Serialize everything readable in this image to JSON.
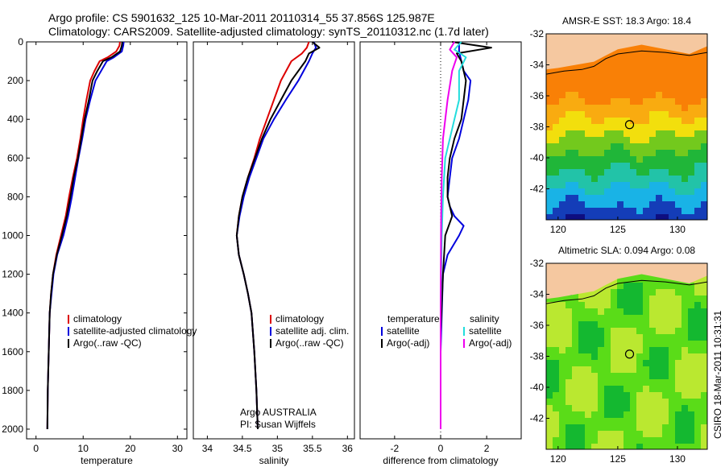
{
  "header": {
    "line1": "Argo profile: CS 5901632_125 10-Mar-2011 20110314_55 37.856S 125.987E",
    "line2": "Climatology: CARS2009. Satellite-adjusted climatology: synTS_20110312.nc (1.7d later)"
  },
  "side_label": "CSIRO 18-Mar-2011 10:31:31",
  "colors": {
    "red": "#dd0000",
    "blue": "#0000dd",
    "black": "#000000",
    "cyan": "#22dddd",
    "magenta": "#ee00ee",
    "land": "#f5c8a0"
  },
  "chart_data": [
    {
      "type": "line",
      "panel": "temperature",
      "xlabel": "temperature",
      "ylabel": "",
      "xlim": [
        -2,
        32
      ],
      "ylim": [
        0,
        2050
      ],
      "y_reversed": true,
      "xticks": [
        0,
        10,
        20,
        30
      ],
      "yticks": [
        0,
        200,
        400,
        600,
        800,
        1000,
        1200,
        1400,
        1600,
        1800,
        2000
      ],
      "legend": [
        "climatology",
        "satellite-adjusted climatology",
        "Argo(..raw -QC)"
      ],
      "series": [
        {
          "name": "climatology",
          "color": "red",
          "x": [
            17.8,
            17.7,
            17.0,
            15.2,
            13.5,
            12.4,
            11.5,
            10.7,
            10.0,
            9.4,
            8.7,
            7.8,
            7.0,
            6.3,
            5.3,
            4.3,
            3.6,
            3.2,
            2.9,
            2.7,
            2.5,
            2.4
          ],
          "y": [
            0,
            20,
            50,
            80,
            100,
            150,
            200,
            300,
            400,
            500,
            600,
            700,
            800,
            900,
            1000,
            1100,
            1200,
            1300,
            1400,
            1600,
            1800,
            2000
          ]
        },
        {
          "name": "satellite-adjusted climatology",
          "color": "blue",
          "x": [
            18.6,
            18.5,
            18.2,
            16.5,
            15.0,
            13.8,
            12.6,
            11.5,
            10.5,
            9.8,
            9.0,
            8.3,
            7.6,
            6.8,
            5.8,
            4.5,
            3.7,
            3.3,
            2.9,
            2.7,
            2.5,
            2.4
          ],
          "y": [
            0,
            20,
            50,
            80,
            100,
            150,
            200,
            300,
            400,
            500,
            600,
            700,
            800,
            900,
            1000,
            1100,
            1200,
            1300,
            1400,
            1600,
            1800,
            2000
          ]
        },
        {
          "name": "Argo(..raw -QC)",
          "color": "black",
          "x": [
            18.3,
            18.2,
            17.8,
            16.0,
            14.2,
            13.0,
            12.0,
            11.2,
            10.3,
            9.6,
            8.9,
            8.0,
            7.3,
            6.5,
            5.5,
            4.4,
            3.6,
            3.2,
            2.9,
            2.7,
            2.5,
            2.4
          ],
          "y": [
            0,
            20,
            50,
            80,
            100,
            150,
            200,
            300,
            400,
            500,
            600,
            700,
            800,
            900,
            1000,
            1100,
            1200,
            1300,
            1400,
            1600,
            1800,
            2000
          ]
        }
      ]
    },
    {
      "type": "line",
      "panel": "salinity",
      "xlabel": "salinity",
      "ylabel": "",
      "xlim": [
        33.8,
        36.1
      ],
      "ylim": [
        0,
        2050
      ],
      "y_reversed": true,
      "xticks": [
        34,
        34.5,
        35,
        35.5,
        36
      ],
      "xtick_labels": [
        "34",
        "34.5",
        "35",
        "35.5",
        "36"
      ],
      "legend": [
        "climatology",
        "satellite adj. clim.",
        "Argo(..raw -QC)"
      ],
      "annotation": [
        "Argo AUSTRALIA",
        "PI: Susan Wijffels"
      ],
      "series": [
        {
          "name": "climatology",
          "color": "red",
          "x": [
            35.45,
            35.42,
            35.35,
            35.2,
            35.05,
            34.95,
            34.85,
            34.75,
            34.67,
            34.58,
            34.5,
            34.45,
            34.42,
            34.45,
            34.52,
            34.58,
            34.63,
            34.67,
            34.7,
            34.72
          ],
          "y": [
            0,
            30,
            60,
            100,
            200,
            300,
            400,
            500,
            600,
            700,
            800,
            900,
            1000,
            1100,
            1200,
            1300,
            1400,
            1600,
            1800,
            2000
          ]
        },
        {
          "name": "satellite adj. clim.",
          "color": "blue",
          "x": [
            35.52,
            35.55,
            35.5,
            35.45,
            35.3,
            35.12,
            34.95,
            34.8,
            34.7,
            34.6,
            34.52,
            34.46,
            34.42,
            34.45,
            34.52,
            34.58,
            34.63,
            34.67,
            34.7,
            34.72
          ],
          "y": [
            0,
            30,
            60,
            100,
            200,
            300,
            400,
            500,
            600,
            700,
            800,
            900,
            1000,
            1100,
            1200,
            1300,
            1400,
            1600,
            1800,
            2000
          ]
        },
        {
          "name": "Argo(..raw -QC)",
          "color": "black",
          "x": [
            35.5,
            35.6,
            35.45,
            35.4,
            35.2,
            35.05,
            34.9,
            34.78,
            34.68,
            34.58,
            34.5,
            34.45,
            34.42,
            34.45,
            34.52,
            34.58,
            34.63,
            34.67,
            34.7,
            34.72
          ],
          "y": [
            0,
            30,
            60,
            100,
            200,
            300,
            400,
            500,
            600,
            700,
            800,
            900,
            1000,
            1100,
            1200,
            1300,
            1400,
            1600,
            1800,
            2000
          ]
        }
      ]
    },
    {
      "type": "line",
      "panel": "difference",
      "xlabel": "difference from climatology",
      "ylabel": "",
      "xlim": [
        -3.5,
        3.5
      ],
      "ylim": [
        0,
        2050
      ],
      "y_reversed": true,
      "xticks": [
        -2,
        0,
        2
      ],
      "legend_left": [
        "temperature",
        "satellite",
        "Argo(-adj)"
      ],
      "legend_right": [
        "salinity",
        "satellite",
        "Argo(-adj)"
      ],
      "series": [
        {
          "name": "temperature satellite",
          "color": "blue",
          "x": [
            0.8,
            0.8,
            0.9,
            1.0,
            1.3,
            1.2,
            1.0,
            0.8,
            0.5,
            0.4,
            0.3,
            0.4,
            0.6,
            1.0,
            0.8,
            0.3,
            0.1,
            0.05,
            0.0,
            0.0
          ],
          "y": [
            0,
            50,
            100,
            150,
            200,
            300,
            400,
            500,
            600,
            700,
            800,
            850,
            900,
            950,
            1000,
            1100,
            1200,
            1400,
            1600,
            2000
          ]
        },
        {
          "name": "temperature Argo(-adj)",
          "color": "black",
          "x": [
            0.5,
            2.2,
            0.7,
            0.9,
            1.1,
            1.0,
            0.9,
            0.6,
            0.4,
            0.3,
            0.3,
            0.5,
            0.2,
            0.1,
            0.0,
            0.0
          ],
          "y": [
            0,
            30,
            60,
            100,
            200,
            300,
            400,
            500,
            600,
            700,
            800,
            900,
            1000,
            1200,
            1500,
            2000
          ]
        },
        {
          "name": "salinity satellite",
          "color": "cyan",
          "x": [
            0.9,
            0.6,
            1.1,
            0.8,
            0.8,
            0.6,
            0.4,
            0.2,
            0.1,
            0.05,
            0.0,
            0.0
          ],
          "y": [
            0,
            40,
            80,
            150,
            300,
            400,
            500,
            600,
            800,
            1000,
            1400,
            2000
          ]
        },
        {
          "name": "salinity Argo(-adj)",
          "color": "magenta",
          "x": [
            0.6,
            0.4,
            0.7,
            0.5,
            0.3,
            0.1,
            0.05,
            0.02,
            0.0,
            0.0
          ],
          "y": [
            0,
            40,
            80,
            150,
            300,
            500,
            700,
            900,
            1400,
            2000
          ]
        }
      ]
    },
    {
      "type": "heatmap",
      "panel": "sst_map",
      "title": "AMSR-E SST: 18.3 Argo: 18.4",
      "xlim": [
        119,
        132.5
      ],
      "ylim": [
        -44,
        -32
      ],
      "xticks": [
        120,
        125,
        130
      ],
      "yticks": [
        -32,
        -34,
        -36,
        -38,
        -40,
        -42
      ],
      "marker": {
        "lon": 125.987,
        "lat": -37.856
      }
    },
    {
      "type": "heatmap",
      "panel": "sla_map",
      "title": "Altimetric SLA: 0.094 Argo: 0.08",
      "xlim": [
        119,
        132.5
      ],
      "ylim": [
        -44,
        -32
      ],
      "xticks": [
        120,
        125,
        130
      ],
      "yticks": [
        -32,
        -34,
        -36,
        -38,
        -40,
        -42
      ],
      "marker": {
        "lon": 125.987,
        "lat": -37.856
      }
    }
  ]
}
